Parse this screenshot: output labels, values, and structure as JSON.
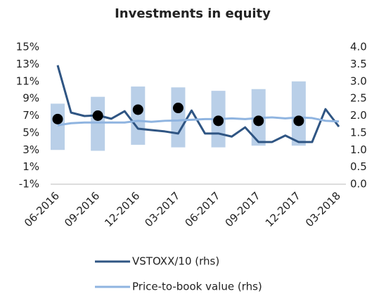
{
  "chart_data": {
    "type": "combo",
    "title": "Investments in equity",
    "categories": [
      "06-2016",
      null,
      null,
      "09-2016",
      null,
      null,
      "12-2016",
      null,
      null,
      "03-2017",
      null,
      null,
      "06-2017",
      null,
      null,
      "09-2017",
      null,
      null,
      "12-2017",
      null,
      null,
      "03-2018"
    ],
    "range_low": [
      3.0,
      null,
      null,
      2.9,
      null,
      null,
      3.6,
      null,
      null,
      3.3,
      null,
      null,
      3.3,
      null,
      null,
      3.5,
      null,
      null,
      3.5,
      null,
      null,
      null
    ],
    "range_high": [
      8.4,
      null,
      null,
      9.2,
      null,
      null,
      10.4,
      null,
      null,
      10.3,
      null,
      null,
      9.9,
      null,
      null,
      10.1,
      null,
      null,
      11.0,
      null,
      null,
      null
    ],
    "range_color": "#b9cfe8",
    "dots": [
      6.6,
      null,
      null,
      7.0,
      null,
      null,
      7.7,
      null,
      null,
      7.9,
      null,
      null,
      6.4,
      null,
      null,
      6.4,
      null,
      null,
      6.4,
      null,
      null,
      null
    ],
    "dots_color": "#000000",
    "series": [
      {
        "name": "VSTOXX/10 (rhs)",
        "color": "#2f5583",
        "axis": "y2",
        "values": [
          3.47,
          2.09,
          1.99,
          2.01,
          1.91,
          2.13,
          1.62,
          1.58,
          1.54,
          1.48,
          2.15,
          1.48,
          1.48,
          1.39,
          1.66,
          1.23,
          1.23,
          1.42,
          1.23,
          1.23,
          2.19,
          1.68
        ]
      },
      {
        "name": "Price-to-book value (rhs)",
        "color": "#8fb4e0",
        "axis": "y2",
        "values": [
          1.72,
          1.78,
          1.8,
          1.8,
          1.8,
          1.8,
          1.85,
          1.82,
          1.85,
          1.86,
          1.88,
          1.9,
          1.9,
          1.92,
          1.9,
          1.93,
          1.95,
          1.92,
          1.95,
          1.93,
          1.85,
          1.83
        ]
      }
    ],
    "ylim": [
      -1,
      15
    ],
    "yticks": [
      {
        "value": -1,
        "label": "-1%"
      },
      {
        "value": 1,
        "label": "1%"
      },
      {
        "value": 3,
        "label": "3%"
      },
      {
        "value": 5,
        "label": "5%"
      },
      {
        "value": 7,
        "label": "7%"
      },
      {
        "value": 9,
        "label": "9%"
      },
      {
        "value": 11,
        "label": "11%"
      },
      {
        "value": 13,
        "label": "13%"
      },
      {
        "value": 15,
        "label": "15%"
      }
    ],
    "y2lim": [
      0,
      4
    ],
    "y2ticks": [
      {
        "value": 0,
        "label": "0.0"
      },
      0.5,
      {
        "value": 1,
        "label": "1.0"
      },
      1.5,
      {
        "value": 2,
        "label": "2.0"
      },
      2.5,
      {
        "value": 3,
        "label": "3.0"
      },
      3.5,
      {
        "value": 4,
        "label": "4.0"
      }
    ],
    "legend": "bottom"
  }
}
